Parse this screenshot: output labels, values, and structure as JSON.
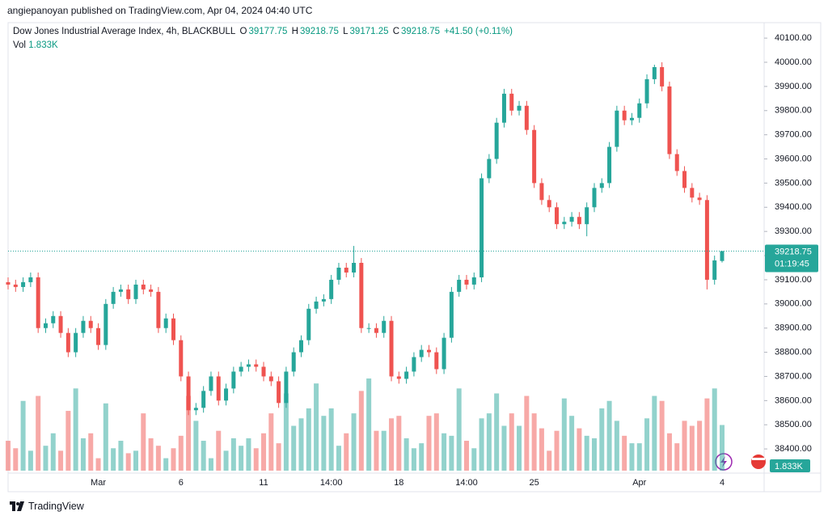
{
  "header": {
    "attribution": "angiepanoyan published on TradingView.com, Apr 04, 2024 04:40 UTC",
    "symbol": "Dow Jones Industrial Average Index, 4h, BLACKBULL",
    "ohlc_labels": [
      "O",
      "H",
      "L",
      "C"
    ],
    "change": "+41.50 (+0.11%)",
    "vol_label": "Vol",
    "vol_value": "1.833K"
  },
  "chart_data": {
    "type": "candlestick",
    "categories": [
      null,
      null,
      null,
      null,
      null,
      null,
      null,
      null,
      null,
      null,
      null,
      null,
      "Mar",
      null,
      null,
      null,
      null,
      null,
      null,
      null,
      null,
      null,
      null,
      "6",
      null,
      null,
      null,
      null,
      null,
      null,
      null,
      null,
      null,
      null,
      "11",
      null,
      null,
      null,
      null,
      null,
      null,
      null,
      null,
      "14:00",
      null,
      null,
      null,
      null,
      null,
      null,
      null,
      null,
      "18",
      null,
      null,
      null,
      null,
      null,
      null,
      null,
      null,
      "14:00",
      null,
      null,
      null,
      null,
      null,
      null,
      null,
      null,
      "25",
      null,
      null,
      null,
      null,
      null,
      null,
      null,
      null,
      null,
      null,
      null,
      null,
      null,
      "Apr",
      null,
      null,
      null,
      null,
      null,
      null,
      null,
      null,
      null,
      null,
      "4"
    ],
    "open": [
      39090,
      39080,
      39070,
      39090,
      39110,
      38900,
      38920,
      38950,
      38880,
      38800,
      38880,
      38930,
      38900,
      38830,
      39000,
      39050,
      39060,
      39020,
      39080,
      39060,
      39050,
      38900,
      38940,
      38850,
      38700,
      38560,
      38570,
      38640,
      38700,
      38600,
      38650,
      38720,
      38740,
      38750,
      38740,
      38700,
      38680,
      38590,
      38720,
      38800,
      38850,
      38980,
      39010,
      39020,
      39100,
      39150,
      39130,
      39170,
      38900,
      38900,
      38880,
      38930,
      38700,
      38690,
      38720,
      38780,
      38810,
      38800,
      38730,
      38860,
      39050,
      39100,
      39080,
      39110,
      39520,
      39600,
      39750,
      39870,
      39800,
      39820,
      39720,
      39500,
      39430,
      39400,
      39330,
      39340,
      39360,
      39330,
      39400,
      39480,
      39500,
      39650,
      39800,
      39760,
      39770,
      39830,
      39930,
      39980,
      39900,
      39620,
      39550,
      39480,
      39440,
      39430,
      39100,
      39177.75
    ],
    "high": [
      39110,
      39100,
      39110,
      39130,
      39130,
      38940,
      38970,
      38970,
      38900,
      38900,
      38950,
      38950,
      38920,
      39020,
      39070,
      39080,
      39080,
      39100,
      39100,
      39080,
      39070,
      38960,
      38960,
      38870,
      38720,
      38590,
      38660,
      38720,
      38720,
      38670,
      38740,
      38760,
      38770,
      38770,
      38760,
      38720,
      38700,
      38740,
      38820,
      38870,
      39000,
      39030,
      39040,
      39120,
      39170,
      39170,
      39240,
      39190,
      38920,
      38920,
      38950,
      38950,
      38720,
      38740,
      38800,
      38830,
      38830,
      38820,
      38880,
      39070,
      39120,
      39120,
      39130,
      39540,
      39620,
      39770,
      39890,
      39890,
      39840,
      39840,
      39740,
      39520,
      39450,
      39420,
      39360,
      39380,
      39380,
      39420,
      39500,
      39520,
      39670,
      39820,
      39820,
      39790,
      39850,
      39950,
      39990,
      40000,
      39920,
      39640,
      39570,
      39500,
      39460,
      39450,
      39200,
      39218.75
    ],
    "low": [
      39060,
      39050,
      39050,
      39070,
      38880,
      38880,
      38900,
      38860,
      38780,
      38780,
      38860,
      38880,
      38810,
      38810,
      38980,
      39030,
      39000,
      39000,
      39040,
      39030,
      38880,
      38880,
      38830,
      38680,
      38540,
      38540,
      38550,
      38620,
      38580,
      38580,
      38630,
      38700,
      38720,
      38720,
      38680,
      38660,
      38570,
      38570,
      38700,
      38780,
      38830,
      38960,
      38990,
      39000,
      39080,
      39110,
      39110,
      38880,
      38880,
      38860,
      38860,
      38680,
      38670,
      38670,
      38700,
      38760,
      38780,
      38710,
      38710,
      38840,
      39030,
      39060,
      39060,
      39090,
      39500,
      39580,
      39730,
      39780,
      39780,
      39700,
      39480,
      39410,
      39380,
      39310,
      39310,
      39320,
      39310,
      39280,
      39380,
      39460,
      39480,
      39630,
      39740,
      39740,
      39750,
      39810,
      39910,
      39880,
      39600,
      39530,
      39460,
      39420,
      39410,
      39060,
      39080,
      39171.25
    ],
    "close": [
      39080,
      39070,
      39090,
      39110,
      38900,
      38920,
      38950,
      38880,
      38800,
      38880,
      38930,
      38900,
      38830,
      39000,
      39050,
      39060,
      39020,
      39080,
      39060,
      39050,
      38900,
      38940,
      38850,
      38700,
      38560,
      38570,
      38640,
      38700,
      38600,
      38650,
      38720,
      38740,
      38750,
      38740,
      38700,
      38680,
      38590,
      38720,
      38800,
      38850,
      38980,
      39010,
      39020,
      39100,
      39150,
      39130,
      39170,
      38900,
      38900,
      38880,
      38930,
      38700,
      38690,
      38720,
      38780,
      38810,
      38800,
      38730,
      38860,
      39050,
      39100,
      39080,
      39110,
      39520,
      39600,
      39750,
      39870,
      39800,
      39820,
      39720,
      39500,
      39430,
      39400,
      39330,
      39340,
      39360,
      39330,
      39400,
      39480,
      39500,
      39650,
      39800,
      39760,
      39770,
      39830,
      39930,
      39980,
      39900,
      39620,
      39550,
      39480,
      39440,
      39430,
      39100,
      39180,
      39218.75
    ],
    "volume": [
      1200,
      900,
      2800,
      800,
      3000,
      1000,
      1500,
      800,
      2400,
      3300,
      1300,
      1500,
      500,
      2700,
      900,
      1200,
      700,
      800,
      2300,
      1300,
      1000,
      500,
      900,
      1400,
      3000,
      2000,
      1200,
      500,
      1600,
      800,
      1300,
      1000,
      1300,
      900,
      1500,
      2300,
      1100,
      3100,
      1800,
      2100,
      2500,
      3500,
      2200,
      2500,
      1000,
      1500,
      2300,
      3200,
      3700,
      1600,
      1600,
      2100,
      2200,
      1300,
      900,
      1100,
      2200,
      2300,
      1500,
      1400,
      3300,
      1200,
      900,
      2100,
      2300,
      3100,
      1800,
      2300,
      1800,
      3000,
      2300,
      1700,
      800,
      1600,
      2900,
      2200,
      1700,
      1400,
      1300,
      2500,
      2800,
      2000,
      1400,
      1100,
      1100,
      2100,
      3000,
      2800,
      1500,
      1100,
      2000,
      1800,
      2000,
      2900,
      3300,
      1833
    ],
    "volume_label": "1.833K",
    "countdown": "01:19:45",
    "up_color": "#26a69a",
    "down_color": "#ef5350",
    "ylim": [
      38310,
      40164
    ],
    "yticks": [
      {
        "value": 40100,
        "label": "40100.00"
      },
      {
        "value": 40000,
        "label": "40000.00"
      },
      {
        "value": 39900,
        "label": "39900.00"
      },
      {
        "value": 39800,
        "label": "39800.00"
      },
      {
        "value": 39700,
        "label": "39700.00"
      },
      {
        "value": 39600,
        "label": "39600.00"
      },
      {
        "value": 39500,
        "label": "39500.00"
      },
      {
        "value": 39400,
        "label": "39400.00"
      },
      {
        "value": 39300,
        "label": "39300.00"
      },
      {
        "value": 39200,
        "label": "39200.00"
      },
      {
        "value": 39100,
        "label": "39100.00"
      },
      {
        "value": 39000,
        "label": "39000.00"
      },
      {
        "value": 38900,
        "label": "38900.00"
      },
      {
        "value": 38800,
        "label": "38800.00"
      },
      {
        "value": 38700,
        "label": "38700.00"
      },
      {
        "value": 38600,
        "label": "38600.00"
      },
      {
        "value": 38500,
        "label": "38500.00"
      },
      {
        "value": 38400,
        "label": "38400.00"
      }
    ]
  },
  "footer": {
    "brand": "TradingView"
  }
}
